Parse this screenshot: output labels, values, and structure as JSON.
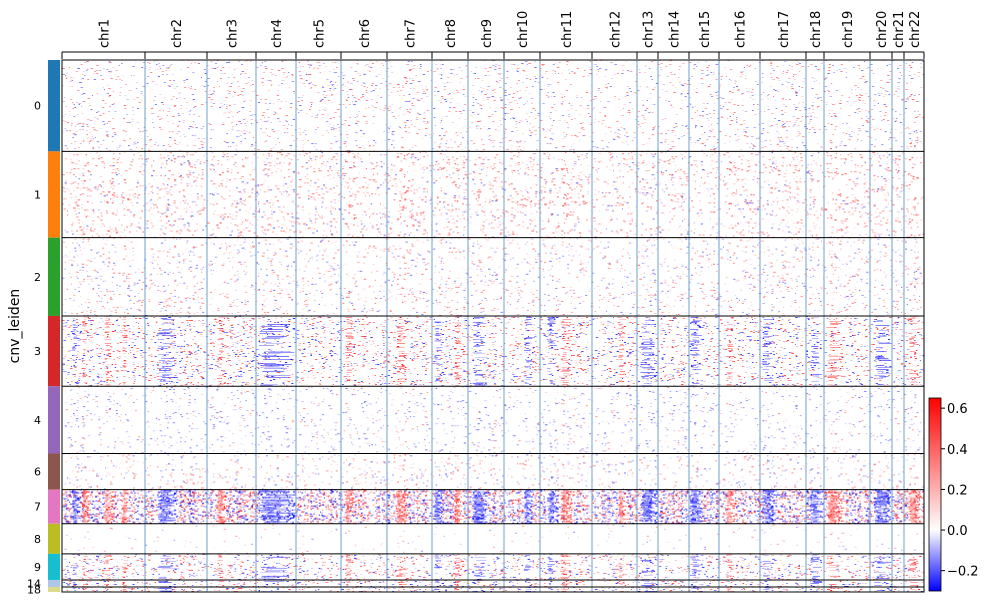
{
  "chart_data": {
    "type": "heatmap",
    "xlabel": "",
    "ylabel": "cnv_leiden",
    "chromosomes": [
      {
        "label": "chr1",
        "start": 0,
        "end": 83
      },
      {
        "label": "chr2",
        "start": 83,
        "end": 145
      },
      {
        "label": "chr3",
        "start": 145,
        "end": 194
      },
      {
        "label": "chr4",
        "start": 194,
        "end": 234
      },
      {
        "label": "chr5",
        "start": 234,
        "end": 279
      },
      {
        "label": "chr6",
        "start": 279,
        "end": 325
      },
      {
        "label": "chr7",
        "start": 325,
        "end": 370
      },
      {
        "label": "chr8",
        "start": 370,
        "end": 406
      },
      {
        "label": "chr9",
        "start": 406,
        "end": 442
      },
      {
        "label": "chr10",
        "start": 442,
        "end": 478
      },
      {
        "label": "chr11",
        "start": 478,
        "end": 530
      },
      {
        "label": "chr12",
        "start": 530,
        "end": 575
      },
      {
        "label": "chr13",
        "start": 575,
        "end": 596
      },
      {
        "label": "chr14",
        "start": 596,
        "end": 627
      },
      {
        "label": "chr15",
        "start": 627,
        "end": 657
      },
      {
        "label": "chr16",
        "start": 657,
        "end": 698
      },
      {
        "label": "chr17",
        "start": 698,
        "end": 744
      },
      {
        "label": "chr18",
        "start": 744,
        "end": 762
      },
      {
        "label": "chr19",
        "start": 762,
        "end": 808
      },
      {
        "label": "chr20",
        "start": 808,
        "end": 830
      },
      {
        "label": "chr21",
        "start": 830,
        "end": 842
      },
      {
        "label": "chr22",
        "start": 842,
        "end": 862
      }
    ],
    "clusters": [
      {
        "label": "0",
        "cells": 91,
        "color": "#1f77b4",
        "profile": "neutral"
      },
      {
        "label": "1",
        "cells": 86,
        "color": "#ff7f0e",
        "profile": "gain-light"
      },
      {
        "label": "2",
        "cells": 78,
        "color": "#2ca02c",
        "profile": "neutral"
      },
      {
        "label": "3",
        "cells": 70,
        "color": "#d62728",
        "profile": "mixed"
      },
      {
        "label": "4",
        "cells": 67,
        "color": "#9467bd",
        "profile": "loss-light"
      },
      {
        "label": "6",
        "cells": 36,
        "color": "#8c564b",
        "profile": "neutral"
      },
      {
        "label": "7",
        "cells": 34,
        "color": "#e377c2",
        "profile": "strong"
      },
      {
        "label": "8",
        "cells": 30,
        "color": "#bcbd22",
        "profile": "flat"
      },
      {
        "label": "9",
        "cells": 26,
        "color": "#17becf",
        "profile": "mixed"
      },
      {
        "label": "14",
        "cells": 7,
        "color": "#aec7e8",
        "profile": "mixed"
      },
      {
        "label": "18",
        "cells": 5,
        "color": "#dbdb8d",
        "profile": "mixed"
      }
    ],
    "colorbar": {
      "colors": [
        "#0000ff",
        "#ffffff",
        "#ff0000"
      ],
      "vmin": -0.3,
      "vmax": 0.65,
      "ticks": [
        "0.6",
        "0.4",
        "0.2",
        "0.0",
        "−0.2"
      ],
      "tick_values": [
        0.6,
        0.4,
        0.2,
        0.0,
        -0.2
      ]
    }
  }
}
